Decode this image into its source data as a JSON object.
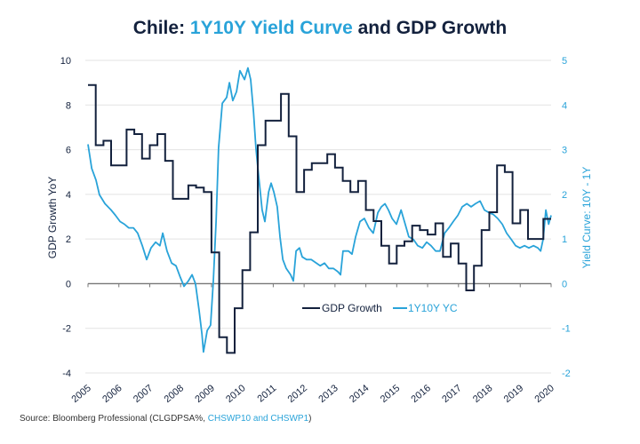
{
  "title": {
    "prefix": "Chile: ",
    "highlight": "1Y10Y Yield Curve",
    "suffix": " and GDP Growth"
  },
  "source": {
    "prefix": "Source: Bloomberg Professional (CLGDPSA%, ",
    "highlight": "CHSWP10 and CHSWP1",
    "suffix": ")"
  },
  "colors": {
    "gdp": "#13213d",
    "yc": "#29a3d9",
    "grid": "#e3e3e3",
    "zero": "#777777"
  },
  "chart_data": {
    "type": "line",
    "title": "Chile: 1Y10Y Yield Curve and GDP Growth",
    "ylabel": "GDP Growth YoY",
    "ylabel_right": "Yield Curve: 10Y - 1Y",
    "ylim": [
      -4,
      10
    ],
    "ylim_right": [
      -2,
      5
    ],
    "xlim": [
      2005,
      2020
    ],
    "grid": true,
    "legend_position": "center-right, below zero line",
    "yticks": [
      "10",
      "8",
      "6",
      "4",
      "2",
      "0",
      "-2",
      "-4"
    ],
    "yticks_right": [
      "5",
      "4",
      "3",
      "2",
      "1",
      "0",
      "-1",
      "-2"
    ],
    "xticks": [
      "2005",
      "2006",
      "2007",
      "2008",
      "2009",
      "2010",
      "2011",
      "2012",
      "2013",
      "2014",
      "2015",
      "2016",
      "2017",
      "2018",
      "2019",
      "2020"
    ],
    "series": [
      {
        "name": "GDP Growth",
        "axis": "left",
        "style": "step-quarterly",
        "start": 2005,
        "values": [
          8.9,
          6.2,
          6.4,
          5.3,
          5.3,
          6.9,
          6.7,
          5.6,
          6.2,
          6.7,
          5.5,
          3.8,
          3.8,
          4.4,
          4.3,
          4.1,
          1.4,
          -2.4,
          -3.1,
          -1.1,
          0.6,
          2.3,
          6.2,
          7.3,
          7.3,
          8.5,
          6.6,
          4.1,
          5.1,
          5.4,
          5.4,
          5.8,
          5.2,
          4.6,
          4.1,
          4.6,
          3.3,
          2.8,
          1.7,
          0.9,
          1.7,
          1.9,
          2.6,
          2.4,
          2.2,
          2.7,
          1.2,
          1.8,
          0.9,
          -0.3,
          0.8,
          2.4,
          3.2,
          5.3,
          5.0,
          2.7,
          3.3,
          2.0,
          2.0,
          2.9
        ]
      },
      {
        "name": "1Y10Y YC",
        "axis": "right",
        "x": [
          2005.0,
          2005.12,
          2005.26,
          2005.37,
          2005.55,
          2005.75,
          2005.89,
          2006.04,
          2006.18,
          2006.32,
          2006.47,
          2006.61,
          2006.76,
          2006.9,
          2007.04,
          2007.19,
          2007.33,
          2007.42,
          2007.56,
          2007.71,
          2007.85,
          2007.99,
          2008.11,
          2008.25,
          2008.37,
          2008.48,
          2008.6,
          2008.69,
          2008.74,
          2008.86,
          2008.97,
          2009.06,
          2009.15,
          2009.23,
          2009.35,
          2009.49,
          2009.58,
          2009.69,
          2009.81,
          2009.92,
          2010.07,
          2010.18,
          2010.27,
          2010.36,
          2010.44,
          2010.53,
          2010.64,
          2010.73,
          2010.85,
          2010.93,
          2011.02,
          2011.13,
          2011.22,
          2011.31,
          2011.42,
          2011.56,
          2011.65,
          2011.74,
          2011.85,
          2011.94,
          2012.08,
          2012.23,
          2012.52,
          2012.66,
          2012.8,
          2012.95,
          2013.09,
          2013.18,
          2013.26,
          2013.44,
          2013.55,
          2013.67,
          2013.81,
          2013.95,
          2014.1,
          2014.24,
          2014.39,
          2014.5,
          2014.62,
          2014.73,
          2014.85,
          2014.99,
          2015.14,
          2015.25,
          2015.39,
          2015.54,
          2015.68,
          2015.83,
          2015.97,
          2016.11,
          2016.26,
          2016.4,
          2016.55,
          2016.69,
          2016.83,
          2016.98,
          2017.12,
          2017.27,
          2017.41,
          2017.55,
          2017.7,
          2017.84,
          2017.99,
          2018.13,
          2018.27,
          2018.42,
          2018.56,
          2018.71,
          2018.85,
          2018.99,
          2019.14,
          2019.28,
          2019.43,
          2019.57,
          2019.66,
          2019.74,
          2019.83,
          2019.92,
          2020.0
        ],
        "y": [
          3.12,
          2.58,
          2.32,
          1.99,
          1.79,
          1.65,
          1.53,
          1.39,
          1.33,
          1.25,
          1.25,
          1.13,
          0.85,
          0.54,
          0.8,
          0.93,
          0.85,
          1.13,
          0.73,
          0.46,
          0.4,
          0.14,
          -0.06,
          0.06,
          0.2,
          0.0,
          -0.6,
          -1.13,
          -1.53,
          -1.05,
          -0.93,
          0.06,
          1.39,
          3.04,
          4.04,
          4.17,
          4.5,
          4.1,
          4.3,
          4.77,
          4.57,
          4.83,
          4.57,
          3.84,
          3.04,
          2.39,
          1.65,
          1.39,
          2.05,
          2.25,
          2.05,
          1.72,
          1.05,
          0.54,
          0.34,
          0.2,
          0.06,
          0.73,
          0.8,
          0.6,
          0.54,
          0.54,
          0.4,
          0.46,
          0.34,
          0.34,
          0.27,
          0.2,
          0.73,
          0.73,
          0.66,
          1.05,
          1.39,
          1.46,
          1.25,
          1.13,
          1.59,
          1.72,
          1.79,
          1.65,
          1.46,
          1.33,
          1.65,
          1.39,
          1.05,
          0.99,
          0.85,
          0.8,
          0.93,
          0.85,
          0.73,
          0.73,
          1.13,
          1.25,
          1.39,
          1.53,
          1.72,
          1.79,
          1.72,
          1.79,
          1.85,
          1.65,
          1.59,
          1.55,
          1.46,
          1.33,
          1.13,
          0.99,
          0.85,
          0.8,
          0.85,
          0.8,
          0.85,
          0.8,
          0.73,
          0.99,
          1.65,
          1.33,
          1.53
        ]
      }
    ]
  }
}
